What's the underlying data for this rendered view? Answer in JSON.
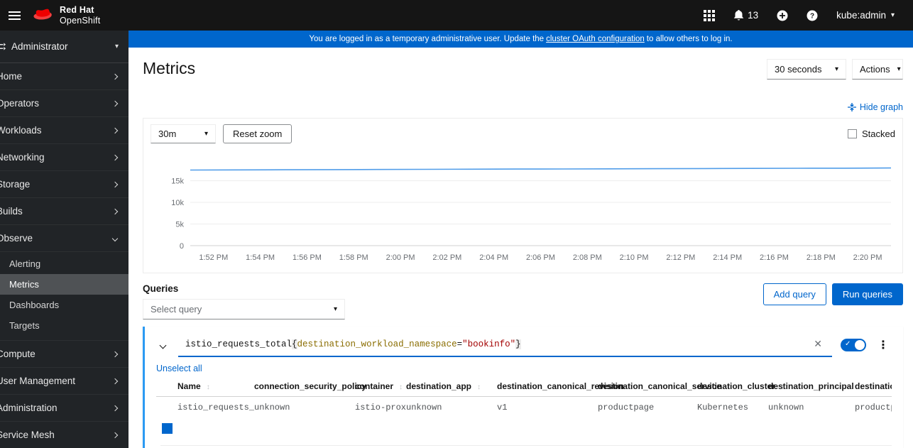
{
  "masthead": {
    "brand_line1": "Red Hat",
    "brand_line2": "OpenShift",
    "notification_count": "13",
    "user": "kube:admin"
  },
  "banner": {
    "text_before": "You are logged in as a temporary administrative user. Update the ",
    "link_text": "cluster OAuth configuration",
    "text_after": " to allow others to log in."
  },
  "sidebar": {
    "perspective": "Administrator",
    "items": [
      {
        "label": "Home"
      },
      {
        "label": "Operators"
      },
      {
        "label": "Workloads"
      },
      {
        "label": "Networking"
      },
      {
        "label": "Storage"
      },
      {
        "label": "Builds"
      },
      {
        "label": "Observe",
        "expanded": true,
        "children": [
          {
            "label": "Alerting"
          },
          {
            "label": "Metrics",
            "active": true
          },
          {
            "label": "Dashboards"
          },
          {
            "label": "Targets"
          }
        ]
      },
      {
        "label": "Compute"
      },
      {
        "label": "User Management"
      },
      {
        "label": "Administration"
      },
      {
        "label": "Service Mesh"
      }
    ]
  },
  "page": {
    "title": "Metrics",
    "refresh_interval": "30 seconds",
    "actions_label": "Actions",
    "hide_graph_label": "Hide graph",
    "graph": {
      "timespan": "30m",
      "reset_zoom_label": "Reset zoom",
      "stacked_label": "Stacked"
    },
    "queries": {
      "heading": "Queries",
      "select_placeholder": "Select query",
      "add_query_label": "Add query",
      "run_queries_label": "Run queries"
    }
  },
  "query": {
    "expression": {
      "metric": "istio_requests_total",
      "open": "{",
      "label": "destination_workload_namespace",
      "op": "=",
      "value": "\"bookinfo\"",
      "close": "}"
    },
    "unselect_all_label": "Unselect all",
    "table": {
      "columns": [
        "Name",
        "connection_security_policy",
        "container",
        "destination_app",
        "destination_canonical_revision",
        "destination_canonical_service",
        "destination_cluster",
        "destination_principal",
        "destination_service"
      ],
      "rows": [
        [
          "istio_requests_total",
          "unknown",
          "istio-proxy",
          "unknown",
          "v1",
          "productpage",
          "Kubernetes",
          "unknown",
          "productpage.bookinfo.svc.cluster.local"
        ]
      ]
    }
  },
  "colors": {
    "accent": "#0066cc",
    "banner": "#0066cc",
    "chart_line": "#519de9",
    "series_swatch": "#0066cc",
    "syntax_label": "#8a6d00",
    "syntax_string": "#a30000"
  },
  "chart_data": {
    "type": "line",
    "title": "",
    "xlabel": "",
    "ylabel": "",
    "grid": "horizontal",
    "legend": "none",
    "ylim": [
      0,
      21000
    ],
    "yticks": [
      {
        "value": 0,
        "label": "0"
      },
      {
        "value": 5000,
        "label": "5k"
      },
      {
        "value": 10000,
        "label": "10k"
      },
      {
        "value": 15000,
        "label": "15k"
      }
    ],
    "x_ticks": [
      "1:52 PM",
      "1:54 PM",
      "1:56 PM",
      "1:58 PM",
      "2:00 PM",
      "2:02 PM",
      "2:04 PM",
      "2:06 PM",
      "2:08 PM",
      "2:10 PM",
      "2:12 PM",
      "2:14 PM",
      "2:16 PM",
      "2:18 PM",
      "2:20 PM"
    ],
    "series": [
      {
        "name": "istio_requests_total{destination_workload_namespace=\"bookinfo\"}",
        "values": [
          17480,
          17510,
          17545,
          17575,
          17605,
          17640,
          17665,
          17695,
          17725,
          17755,
          17785,
          17815,
          17845,
          17875,
          17905,
          17945
        ]
      }
    ]
  }
}
